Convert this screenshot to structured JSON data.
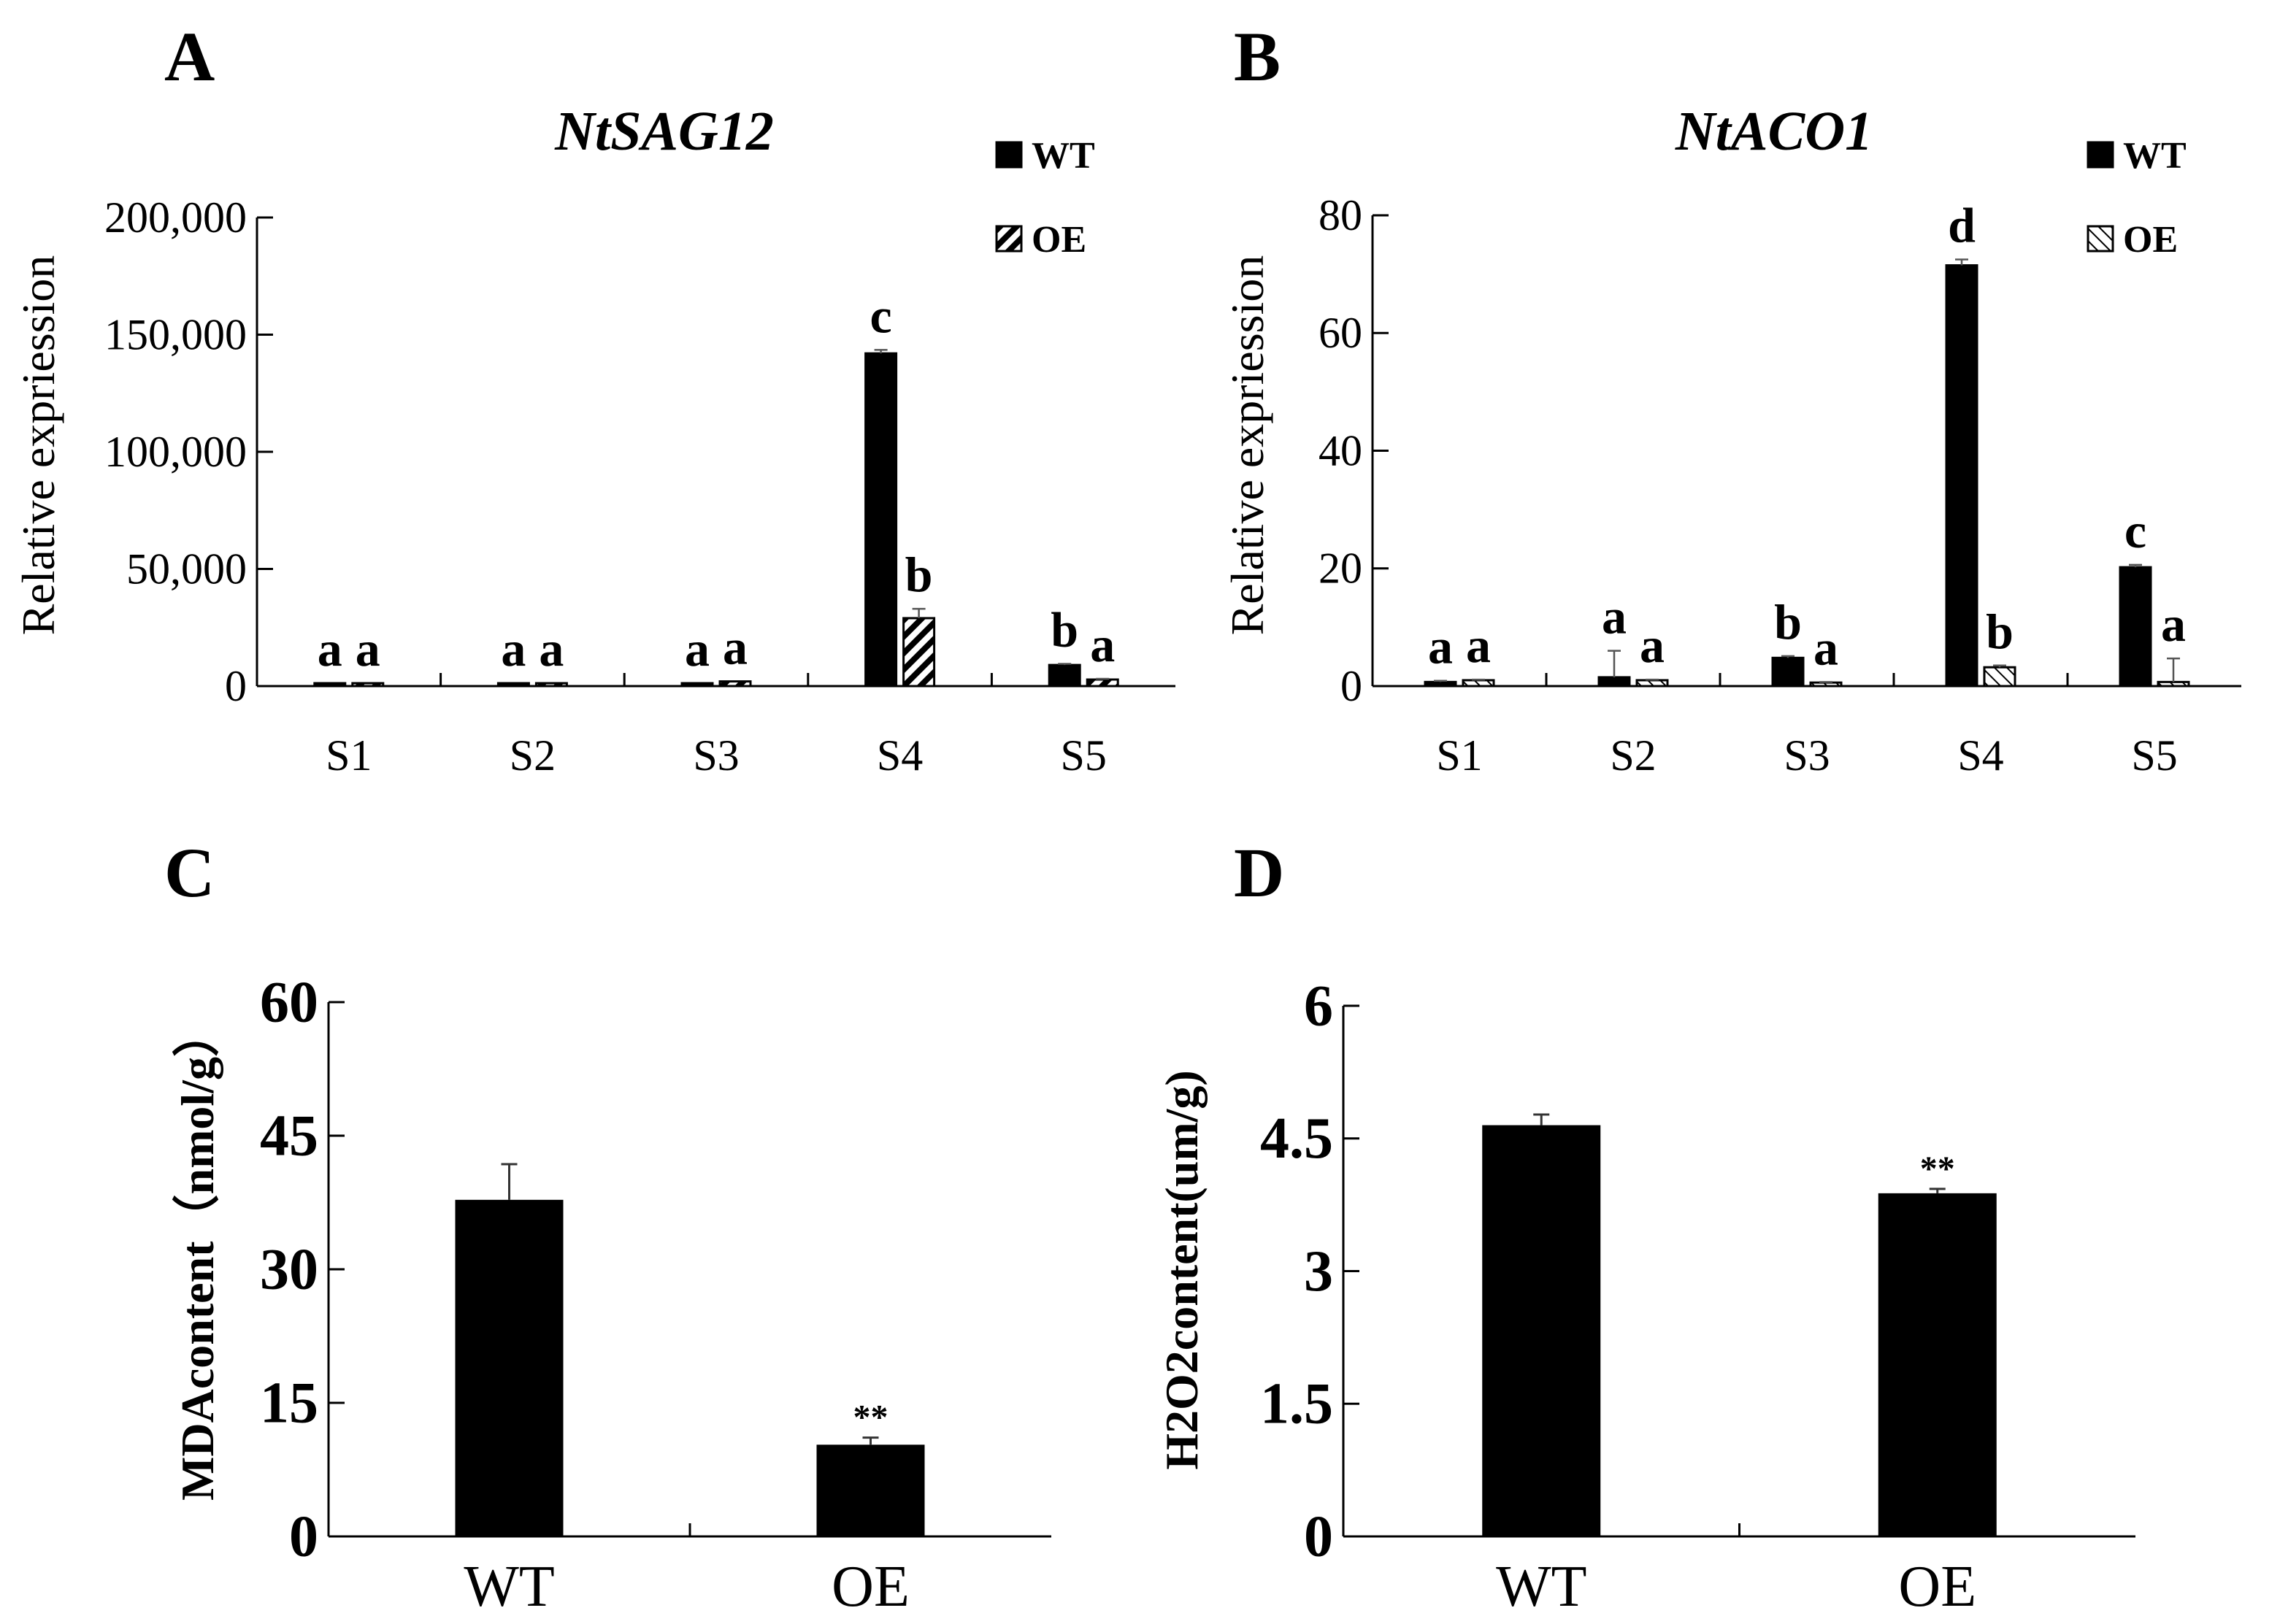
{
  "panels": [
    "A",
    "B",
    "C",
    "D"
  ],
  "chart_data": [
    {
      "panel": "A",
      "type": "bar",
      "title": "NtSAG12",
      "ylabel": "Relative expriession",
      "xlabel": "",
      "categories": [
        "S1",
        "S2",
        "S3",
        "S4",
        "S5"
      ],
      "ylim": [
        0,
        200000
      ],
      "yticks": [
        "0",
        "50,000",
        "100,000",
        "150,000",
        "200,000"
      ],
      "ytick_values": [
        0,
        50000,
        100000,
        150000,
        200000
      ],
      "legend": "top-right",
      "series": [
        {
          "name": "WT",
          "fill": "solid",
          "values": [
            800,
            900,
            900,
            142000,
            9000
          ],
          "errors": [
            0,
            0,
            0,
            1500,
            500
          ],
          "letters": [
            "a",
            "a",
            "a",
            "c",
            "b"
          ]
        },
        {
          "name": "OE",
          "fill": "hatch",
          "values": [
            1200,
            1200,
            2000,
            29000,
            2800
          ],
          "errors": [
            0,
            0,
            0,
            4000,
            300
          ],
          "letters": [
            "a",
            "a",
            "a",
            "b",
            "a"
          ]
        }
      ]
    },
    {
      "panel": "B",
      "type": "bar",
      "title": "NtACO1",
      "ylabel": "Relative expriession",
      "xlabel": "",
      "categories": [
        "S1",
        "S2",
        "S3",
        "S4",
        "S5"
      ],
      "ylim": [
        0,
        80
      ],
      "yticks": [
        "0",
        "20",
        "40",
        "60",
        "80"
      ],
      "ytick_values": [
        0,
        20,
        40,
        60,
        80
      ],
      "legend": "top-right",
      "series": [
        {
          "name": "WT",
          "fill": "solid",
          "values": [
            0.7,
            1.5,
            4.8,
            71.5,
            20.2
          ],
          "errors": [
            0.2,
            4.5,
            0.3,
            1.0,
            0.4
          ],
          "letters": [
            "a",
            "a",
            "b",
            "d",
            "c"
          ]
        },
        {
          "name": "OE",
          "fill": "diag",
          "values": [
            1.0,
            1.0,
            0.6,
            3.2,
            0.7
          ],
          "errors": [
            0.1,
            0.1,
            0.1,
            0.3,
            4.0
          ],
          "letters": [
            "a",
            "a",
            "a",
            "b",
            "a"
          ]
        }
      ]
    },
    {
      "panel": "C",
      "type": "bar",
      "ylabel": "MDAcontent（nmol/g）",
      "xlabel": "",
      "categories": [
        "WT",
        "OE"
      ],
      "values": [
        37.8,
        10.3
      ],
      "errors": [
        4.0,
        0.8
      ],
      "annotations": [
        "",
        "**"
      ],
      "ylim": [
        0,
        60
      ],
      "yticks": [
        "0",
        "15",
        "30",
        "45",
        "60"
      ],
      "ytick_values": [
        0,
        15,
        30,
        45,
        60
      ]
    },
    {
      "panel": "D",
      "type": "bar",
      "ylabel": "H2O2content(um/g)",
      "xlabel": "",
      "categories": [
        "WT",
        "OE"
      ],
      "values": [
        4.65,
        3.88
      ],
      "errors": [
        0.12,
        0.05
      ],
      "annotations": [
        "",
        "**"
      ],
      "ylim": [
        0,
        6
      ],
      "yticks": [
        "0",
        "1.5",
        "3",
        "4.5",
        "6"
      ],
      "ytick_values": [
        0,
        1.5,
        3,
        4.5,
        6
      ]
    }
  ]
}
